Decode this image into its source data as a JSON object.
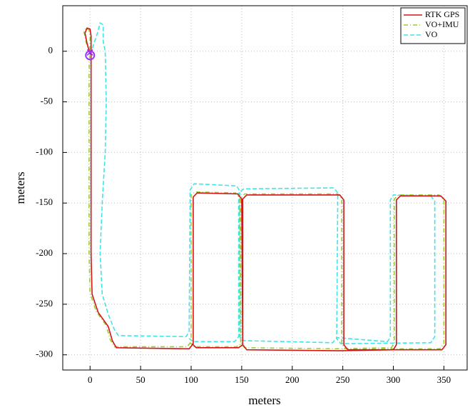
{
  "chart_data": {
    "type": "line",
    "xlabel": "meters",
    "ylabel": "meters",
    "xlim": [
      -27,
      373
    ],
    "ylim": [
      -315,
      45
    ],
    "xticks": [
      0,
      50,
      100,
      150,
      200,
      250,
      300,
      350
    ],
    "yticks": [
      -300,
      -250,
      -200,
      -150,
      -100,
      -50,
      0
    ],
    "grid": true,
    "legend": "upper right",
    "series": [
      {
        "name": "RTK GPS",
        "color": "#d41515",
        "style": "solid",
        "x": [
          0,
          -3,
          -5,
          -3,
          0,
          1,
          1,
          1,
          1,
          2,
          8,
          18,
          22,
          26,
          98,
          102,
          102,
          106,
          146,
          150,
          151,
          155,
          246,
          300,
          303,
          303,
          307,
          347,
          352,
          352,
          348,
          255,
          251,
          251,
          247,
          155,
          151,
          151,
          147,
          105,
          101
        ],
        "values": [
          -3,
          8,
          18,
          23,
          22,
          15,
          -20,
          -100,
          -200,
          -240,
          -258,
          -272,
          -286,
          -293,
          -294,
          -289,
          -144,
          -140,
          -141,
          -146,
          -290,
          -295,
          -296,
          -295,
          -290,
          -147,
          -143,
          -143,
          -148,
          -290,
          -295,
          -295,
          -290,
          -147,
          -142,
          -142,
          -146,
          -290,
          -293,
          -293,
          -289
        ]
      },
      {
        "name": "VO+IMU",
        "color": "#9acd32",
        "style": "dashdot",
        "x": [
          0,
          -4,
          -6,
          -4,
          -1,
          0,
          -1,
          -1,
          -1,
          0,
          6,
          16,
          20,
          24,
          96,
          100,
          100,
          104,
          144,
          148,
          149,
          153,
          244,
          298,
          301,
          301,
          305,
          345,
          350,
          350,
          346,
          253,
          249,
          249,
          245,
          153,
          149,
          149,
          145,
          103,
          99
        ],
        "values": [
          -2,
          9,
          19,
          23,
          21,
          14,
          -20,
          -100,
          -200,
          -239,
          -257,
          -271,
          -285,
          -292,
          -292,
          -287,
          -142,
          -139,
          -140,
          -145,
          -289,
          -293,
          -294,
          -293,
          -288,
          -146,
          -142,
          -142,
          -147,
          -289,
          -294,
          -294,
          -289,
          -146,
          -141,
          -141,
          -145,
          -289,
          -292,
          -292,
          -288
        ]
      },
      {
        "name": "VO",
        "color": "#3ee6e6",
        "style": "dashed",
        "x": [
          0,
          3,
          8,
          10,
          13,
          13,
          15,
          16,
          15,
          12,
          10,
          12,
          18,
          24,
          28,
          95,
          98,
          99,
          103,
          145,
          148,
          148,
          152,
          240,
          244,
          294,
          297,
          297,
          300,
          337,
          341,
          341,
          337,
          248,
          244,
          245,
          241,
          152,
          147,
          147,
          143,
          102,
          97
        ],
        "values": [
          -3,
          5,
          20,
          28,
          26,
          10,
          0,
          -50,
          -100,
          -150,
          -200,
          -240,
          -260,
          -275,
          -281,
          -282,
          -277,
          -137,
          -131,
          -133,
          -138,
          -282,
          -286,
          -288,
          -283,
          -287,
          -283,
          -147,
          -142,
          -143,
          -148,
          -282,
          -288,
          -289,
          -284,
          -140,
          -135,
          -136,
          -140,
          -282,
          -287,
          -287,
          -283
        ]
      }
    ],
    "start_point": {
      "x": 0,
      "y": -4,
      "color": "#9933ff"
    }
  }
}
